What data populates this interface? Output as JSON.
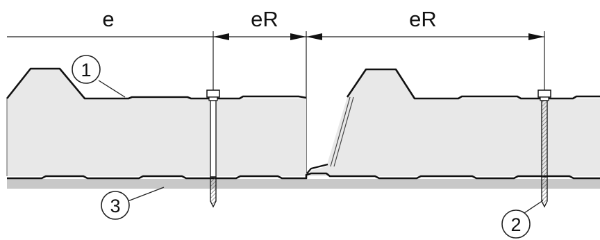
{
  "dimensions": {
    "e": "e",
    "er_left": "eR",
    "er_right": "eR"
  },
  "callouts": {
    "one": "1",
    "two": "2",
    "three": "3"
  },
  "colors": {
    "panel_fill": "#e8e8e8",
    "substrate": "#c8c8c8",
    "line": "#111111"
  }
}
